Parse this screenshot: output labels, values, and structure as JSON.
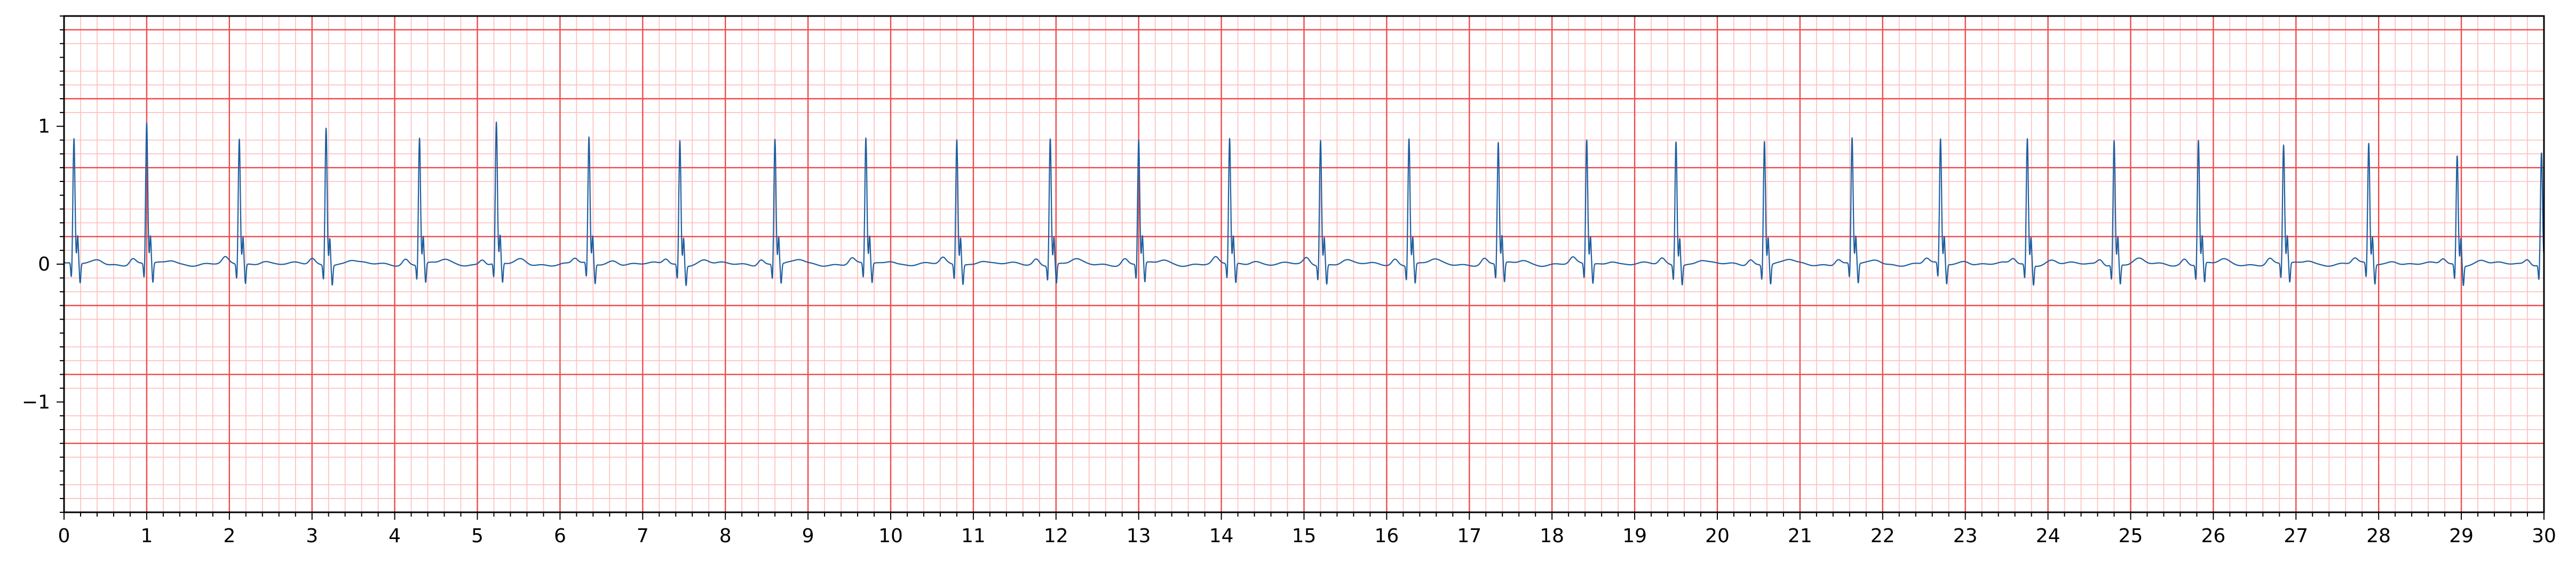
{
  "chart_data": {
    "type": "line",
    "title": "",
    "xlabel": "",
    "ylabel": "",
    "xlim": [
      0,
      30
    ],
    "ylim": [
      -1.8,
      1.8
    ],
    "grid": {
      "major_x_step": 1,
      "minor_x_step": 0.2,
      "major_y_step": 0.5,
      "minor_y_step": 0.1,
      "major_color": "#f04a4a",
      "minor_color": "#ffbcbc"
    },
    "x_ticks": [
      0,
      1,
      2,
      3,
      4,
      5,
      6,
      7,
      8,
      9,
      10,
      11,
      12,
      13,
      14,
      15,
      16,
      17,
      18,
      19,
      20,
      21,
      22,
      23,
      24,
      25,
      26,
      27,
      28,
      29,
      30
    ],
    "x_tick_labels": [
      "0",
      "1",
      "2",
      "3",
      "4",
      "5",
      "6",
      "7",
      "8",
      "9",
      "10",
      "11",
      "12",
      "13",
      "14",
      "15",
      "16",
      "17",
      "18",
      "19",
      "20",
      "21",
      "22",
      "23",
      "24",
      "25",
      "26",
      "27",
      "28",
      "29",
      "30"
    ],
    "y_ticks": [
      -1,
      0,
      1
    ],
    "y_tick_labels": [
      "−1",
      "0",
      "1"
    ],
    "series": [
      {
        "color": "#1f5fa0",
        "beats": [
          {
            "t": 0.12,
            "amp": 0.9
          },
          {
            "t": 1.0,
            "amp": 1.02
          },
          {
            "t": 2.12,
            "amp": 0.91
          },
          {
            "t": 3.17,
            "amp": 1.0
          },
          {
            "t": 4.3,
            "amp": 0.92
          },
          {
            "t": 5.23,
            "amp": 1.02
          },
          {
            "t": 6.35,
            "amp": 0.91
          },
          {
            "t": 7.45,
            "amp": 0.9
          },
          {
            "t": 8.6,
            "amp": 0.91
          },
          {
            "t": 9.7,
            "amp": 0.91
          },
          {
            "t": 10.8,
            "amp": 0.91
          },
          {
            "t": 11.93,
            "amp": 0.92
          },
          {
            "t": 13.0,
            "amp": 0.9
          },
          {
            "t": 14.1,
            "amp": 0.91
          },
          {
            "t": 15.2,
            "amp": 0.91
          },
          {
            "t": 16.27,
            "amp": 0.92
          },
          {
            "t": 17.35,
            "amp": 0.88
          },
          {
            "t": 18.42,
            "amp": 0.9
          },
          {
            "t": 19.5,
            "amp": 0.9
          },
          {
            "t": 20.57,
            "amp": 0.9
          },
          {
            "t": 21.63,
            "amp": 0.91
          },
          {
            "t": 22.7,
            "amp": 0.9
          },
          {
            "t": 23.75,
            "amp": 0.91
          },
          {
            "t": 24.8,
            "amp": 0.9
          },
          {
            "t": 25.82,
            "amp": 0.9
          },
          {
            "t": 26.85,
            "amp": 0.86
          },
          {
            "t": 27.88,
            "amp": 0.87
          },
          {
            "t": 28.95,
            "amp": 0.79
          },
          {
            "t": 29.97,
            "amp": 0.81
          }
        ]
      }
    ]
  }
}
